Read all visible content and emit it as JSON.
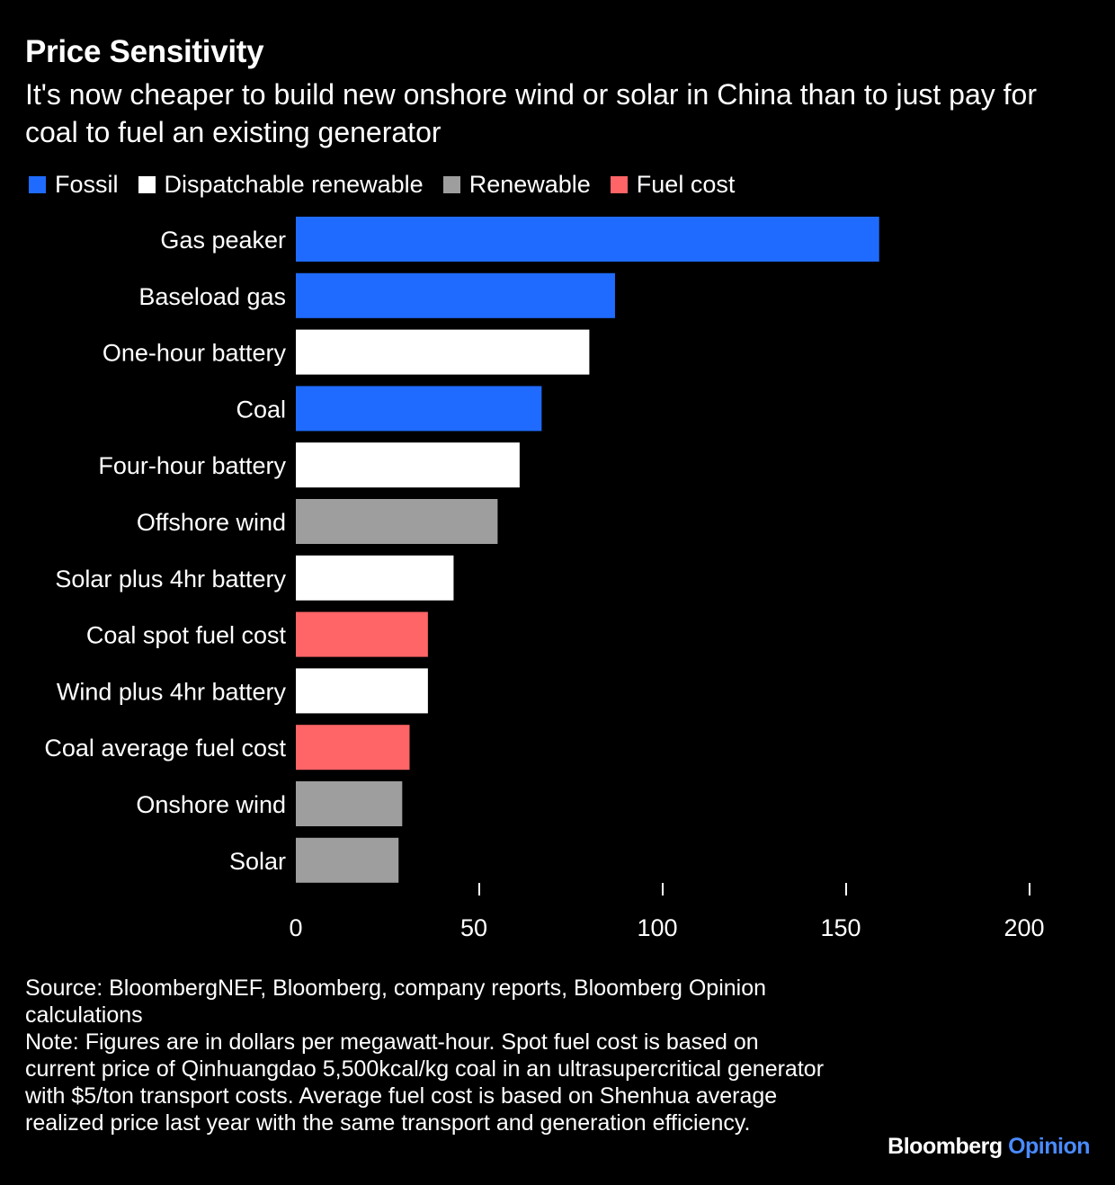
{
  "title": "Price Sensitivity",
  "subtitle": "It's now cheaper to build new onshore wind or solar in China than to just pay for coal to fuel an existing generator",
  "legend": [
    {
      "label": "Fossil",
      "color": "#1F6BFF"
    },
    {
      "label": "Dispatchable renewable",
      "color": "#FFFFFF"
    },
    {
      "label": "Renewable",
      "color": "#9E9E9E"
    },
    {
      "label": "Fuel cost",
      "color": "#FF6466"
    }
  ],
  "chart_data": {
    "type": "bar",
    "orientation": "horizontal",
    "categories": [
      "Gas peaker",
      "Baseload gas",
      "One-hour battery",
      "Coal",
      "Four-hour battery",
      "Offshore wind",
      "Solar plus 4hr battery",
      "Coal spot fuel cost",
      "Wind plus 4hr battery",
      "Coal average fuel cost",
      "Onshore wind",
      "Solar"
    ],
    "values": [
      159,
      87,
      80,
      67,
      61,
      55,
      43,
      36,
      36,
      31,
      29,
      28
    ],
    "groups": [
      "Fossil",
      "Fossil",
      "Dispatchable renewable",
      "Fossil",
      "Dispatchable renewable",
      "Renewable",
      "Dispatchable renewable",
      "Fuel cost",
      "Dispatchable renewable",
      "Fuel cost",
      "Renewable",
      "Renewable"
    ],
    "xlim": [
      0,
      200
    ],
    "xticks": [
      0,
      50,
      100,
      150,
      200
    ],
    "xlabel": "",
    "ylabel": "",
    "grid": false
  },
  "source": "Source: BloombergNEF, Bloomberg, company reports, Bloomberg Opinion calculations",
  "note": "Note: Figures are in dollars per megawatt-hour. Spot fuel cost is based on current price of Qinhuangdao 5,500kcal/kg coal in an ultrasupercritical generator with $5/ton transport costs. Average fuel cost is based on Shenhua average realized price last year with the same transport and generation efficiency.",
  "brand": {
    "primary": "Bloomberg",
    "secondary": "Opinion",
    "secondary_color": "#4A8BFF"
  }
}
